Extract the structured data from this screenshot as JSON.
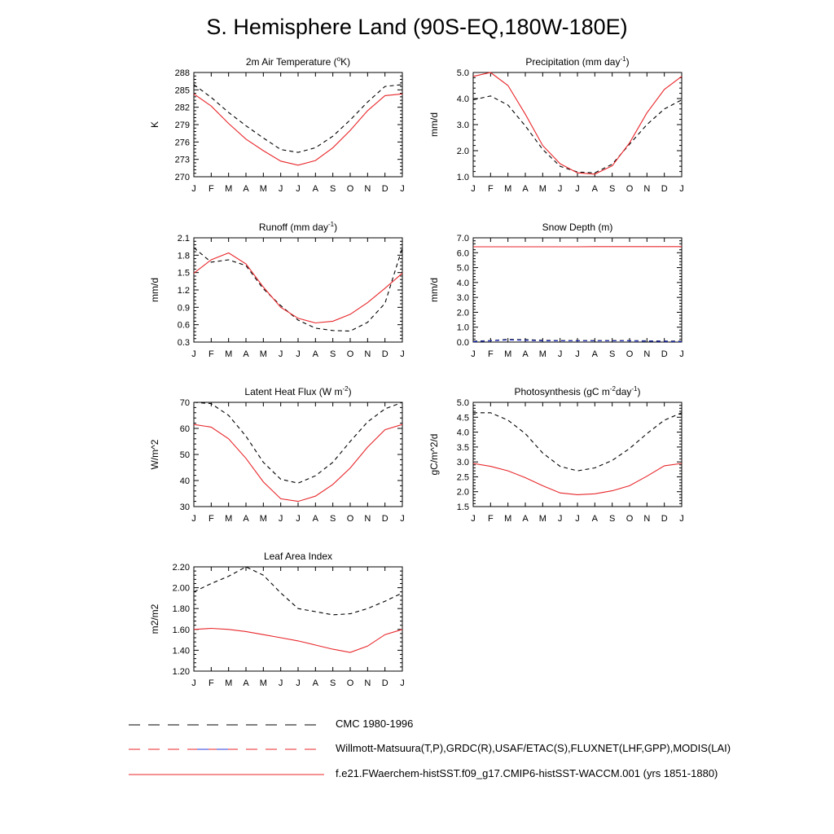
{
  "title": "S. Hemisphere Land (90S-EQ,180W-180E)",
  "legend": [
    {
      "label": "CMC 1980-1996",
      "style": "dashed",
      "colors": [
        "#000000"
      ]
    },
    {
      "label": "Willmott-Matsuura(T,P),GRDC(R),USAF/ETAC(S),FLUXNET(LHF,GPP),MODIS(LAI)",
      "style": "dashed",
      "colors": [
        "#000000",
        "#e8262a",
        "#2a3bd8"
      ]
    },
    {
      "label": "f.e21.FWaerchem-histSST.f09_g17.CMIP6-histSST-WACCM.001 (yrs 1851-1880)",
      "style": "solid",
      "colors": [
        "#e8262a"
      ]
    }
  ],
  "chart_data": [
    {
      "type": "line",
      "title": "2m Air Temperature (",
      "title_sup": "o",
      "title_tail": "K)",
      "ylabel": "K",
      "ylim": [
        270,
        288
      ],
      "yticks": [
        "270",
        "273",
        "276",
        "279",
        "282",
        "285",
        "288"
      ],
      "yticks_values": [
        270,
        273,
        276,
        279,
        282,
        285,
        288
      ],
      "categories": [
        "J",
        "F",
        "M",
        "A",
        "M",
        "J",
        "J",
        "A",
        "S",
        "O",
        "N",
        "D",
        "J"
      ],
      "series": [
        {
          "style": "dashed",
          "color": "#000000",
          "values": [
            285.9,
            283.7,
            281.1,
            278.8,
            276.7,
            274.7,
            274.2,
            275.0,
            277.0,
            279.8,
            282.9,
            285.6,
            285.9
          ]
        },
        {
          "style": "solid",
          "color": "#e8262a",
          "values": [
            284.3,
            282.2,
            279.2,
            276.5,
            274.5,
            272.7,
            272.0,
            272.8,
            275.0,
            278.0,
            281.4,
            284.0,
            284.3
          ]
        }
      ]
    },
    {
      "type": "line",
      "title": "Precipitation (mm day",
      "title_sup": "-1",
      "title_tail": ")",
      "ylabel": "mm/d",
      "ylim": [
        1.0,
        5.0
      ],
      "yticks": [
        "1.0",
        "2.0",
        "3.0",
        "4.0",
        "5.0"
      ],
      "yticks_values": [
        1.0,
        2.0,
        3.0,
        4.0,
        5.0
      ],
      "categories": [
        "J",
        "F",
        "M",
        "A",
        "M",
        "J",
        "J",
        "A",
        "S",
        "O",
        "N",
        "D",
        "J"
      ],
      "series": [
        {
          "style": "dashed",
          "color": "#000000",
          "values": [
            3.95,
            4.1,
            3.75,
            2.95,
            2.05,
            1.4,
            1.18,
            1.15,
            1.48,
            2.25,
            3.0,
            3.6,
            3.95
          ]
        },
        {
          "style": "solid",
          "color": "#e8262a",
          "values": [
            4.85,
            5.0,
            4.5,
            3.4,
            2.2,
            1.5,
            1.15,
            1.1,
            1.42,
            2.3,
            3.45,
            4.35,
            4.85
          ]
        }
      ]
    },
    {
      "type": "line",
      "title": "Runoff (mm day",
      "title_sup": "-1",
      "title_tail": ")",
      "ylabel": "mm/d",
      "ylim": [
        0.3,
        2.1
      ],
      "yticks": [
        "0.3",
        "0.6",
        "0.9",
        "1.2",
        "1.5",
        "1.8",
        "2.1"
      ],
      "yticks_values": [
        0.3,
        0.6,
        0.9,
        1.2,
        1.5,
        1.8,
        2.1
      ],
      "categories": [
        "J",
        "F",
        "M",
        "A",
        "M",
        "J",
        "J",
        "A",
        "S",
        "O",
        "N",
        "D",
        "J"
      ],
      "series": [
        {
          "style": "dashed",
          "color": "#000000",
          "values": [
            1.93,
            1.68,
            1.72,
            1.62,
            1.22,
            0.93,
            0.68,
            0.54,
            0.5,
            0.49,
            0.64,
            0.97,
            1.93
          ]
        },
        {
          "style": "solid",
          "color": "#e8262a",
          "values": [
            1.49,
            1.72,
            1.84,
            1.65,
            1.25,
            0.9,
            0.71,
            0.63,
            0.66,
            0.78,
            0.98,
            1.23,
            1.49
          ]
        }
      ]
    },
    {
      "type": "line",
      "title": "Snow Depth (m)",
      "title_sup": "",
      "title_tail": "",
      "ylabel": "mm/d",
      "ylim": [
        0.0,
        7.0
      ],
      "yticks": [
        "0.0",
        "1.0",
        "2.0",
        "3.0",
        "4.0",
        "5.0",
        "6.0",
        "7.0"
      ],
      "yticks_values": [
        0,
        1,
        2,
        3,
        4,
        5,
        6,
        7
      ],
      "categories": [
        "J",
        "F",
        "M",
        "A",
        "M",
        "J",
        "J",
        "A",
        "S",
        "O",
        "N",
        "D",
        "J"
      ],
      "series": [
        {
          "style": "dashed",
          "color": "#000000",
          "values": [
            0.06,
            0.1,
            0.18,
            0.16,
            0.12,
            0.1,
            0.1,
            0.1,
            0.1,
            0.1,
            0.08,
            0.07,
            0.06
          ]
        },
        {
          "style": "dashed",
          "color": "#2a3bd8",
          "values": [
            0.03,
            0.08,
            0.14,
            0.12,
            0.09,
            0.08,
            0.08,
            0.08,
            0.08,
            0.08,
            0.06,
            0.05,
            0.03
          ]
        },
        {
          "style": "solid",
          "color": "#e8262a",
          "values": [
            6.4,
            6.4,
            6.4,
            6.4,
            6.4,
            6.4,
            6.4,
            6.41,
            6.41,
            6.41,
            6.41,
            6.41,
            6.41
          ]
        }
      ]
    },
    {
      "type": "line",
      "title": "Latent Heat Flux (W m",
      "title_sup": "-2",
      "title_tail": ")",
      "ylabel": "W/m^2",
      "ylim": [
        30,
        70
      ],
      "yticks": [
        "30",
        "40",
        "50",
        "60",
        "70"
      ],
      "yticks_values": [
        30,
        40,
        50,
        60,
        70
      ],
      "categories": [
        "J",
        "F",
        "M",
        "A",
        "M",
        "J",
        "J",
        "A",
        "S",
        "O",
        "N",
        "D",
        "J"
      ],
      "series": [
        {
          "style": "dashed",
          "color": "#000000",
          "values": [
            70.0,
            69.5,
            65.0,
            57.0,
            47.0,
            40.5,
            39.0,
            41.8,
            47.0,
            55.0,
            62.5,
            67.5,
            70.0
          ]
        },
        {
          "style": "solid",
          "color": "#e8262a",
          "values": [
            61.5,
            60.5,
            56.0,
            48.5,
            39.5,
            33.0,
            32.0,
            34.0,
            38.5,
            44.8,
            52.8,
            59.5,
            61.5
          ]
        }
      ]
    },
    {
      "type": "line",
      "title": "Photosynthesis (gC m",
      "title_sup": "-2",
      "title_tail": "day",
      "title_sup2": "-1",
      "title_tail2": ")",
      "ylabel": "gC/m^2/d",
      "ylim": [
        1.5,
        5.0
      ],
      "yticks": [
        "1.5",
        "2.0",
        "2.5",
        "3.0",
        "3.5",
        "4.0",
        "4.5",
        "5.0"
      ],
      "yticks_values": [
        1.5,
        2.0,
        2.5,
        3.0,
        3.5,
        4.0,
        4.5,
        5.0
      ],
      "categories": [
        "J",
        "F",
        "M",
        "A",
        "M",
        "J",
        "J",
        "A",
        "S",
        "O",
        "N",
        "D",
        "J"
      ],
      "series": [
        {
          "style": "dashed",
          "color": "#000000",
          "values": [
            4.65,
            4.65,
            4.4,
            3.95,
            3.3,
            2.85,
            2.7,
            2.8,
            3.05,
            3.45,
            3.95,
            4.4,
            4.65
          ]
        },
        {
          "style": "solid",
          "color": "#e8262a",
          "values": [
            2.95,
            2.85,
            2.7,
            2.47,
            2.2,
            1.96,
            1.9,
            1.93,
            2.03,
            2.2,
            2.52,
            2.87,
            2.95
          ]
        }
      ]
    },
    {
      "type": "line",
      "title": "Leaf Area Index",
      "title_sup": "",
      "title_tail": "",
      "ylabel": "m2/m2",
      "ylim": [
        1.2,
        2.2
      ],
      "yticks": [
        "1.20",
        "1.40",
        "1.60",
        "1.80",
        "2.00",
        "2.20"
      ],
      "yticks_values": [
        1.2,
        1.4,
        1.6,
        1.8,
        2.0,
        2.2
      ],
      "categories": [
        "J",
        "F",
        "M",
        "A",
        "M",
        "J",
        "J",
        "A",
        "S",
        "O",
        "N",
        "D",
        "J"
      ],
      "series": [
        {
          "style": "dashed",
          "color": "#000000",
          "values": [
            1.96,
            2.04,
            2.11,
            2.2,
            2.12,
            1.95,
            1.8,
            1.77,
            1.74,
            1.75,
            1.8,
            1.87,
            1.95
          ]
        },
        {
          "style": "solid",
          "color": "#e8262a",
          "values": [
            1.6,
            1.61,
            1.6,
            1.58,
            1.55,
            1.52,
            1.49,
            1.45,
            1.41,
            1.38,
            1.44,
            1.55,
            1.6
          ]
        }
      ]
    }
  ]
}
